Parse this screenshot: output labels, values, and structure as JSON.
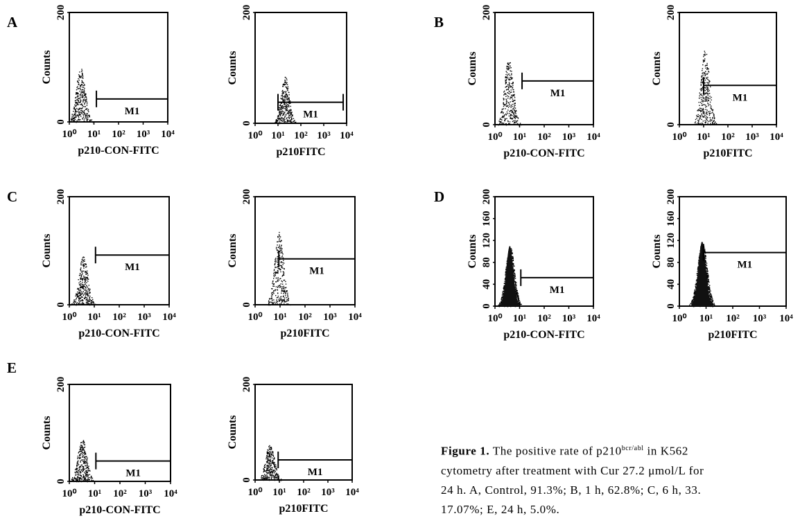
{
  "panels": [
    {
      "letter": "A"
    },
    {
      "letter": "B"
    },
    {
      "letter": "C"
    },
    {
      "letter": "D"
    },
    {
      "letter": "E"
    }
  ],
  "caption": {
    "lead": "Figure 1.",
    "text_1": " The positive rate of p210",
    "sup": "bcr/abl",
    "text_2": " in K562",
    "line2": "cytometry after treatment with Cur 27.2 μmol/L for",
    "line3": "24 h. A, Control, 91.3%;  B, 1 h, 62.8%;  C, 6 h, 33.",
    "line4": "17.07%; E, 24 h, 5.0%."
  },
  "chart_data": [
    {
      "type": "histogram",
      "panel": "A",
      "xlabel": "p210-CON-FITC",
      "ylabel": "Counts",
      "y_ticks": [
        "0",
        "200"
      ],
      "x_ticks": [
        "10⁰",
        "10¹",
        "10²",
        "10³",
        "10⁴"
      ],
      "x_scale": "log",
      "ylim": [
        0,
        200
      ],
      "peak_log": 0.45,
      "peak_height": 100,
      "gate": {
        "label": "M1",
        "from_log": 1.1,
        "to_log": 4.0,
        "y": 42
      }
    },
    {
      "type": "histogram",
      "panel": "A",
      "xlabel": "p210FITC",
      "ylabel": "Counts",
      "y_ticks": [
        "0",
        "200"
      ],
      "x_ticks": [
        "10⁰",
        "10¹",
        "10²",
        "10³",
        "10⁴"
      ],
      "x_scale": "log",
      "ylim": [
        0,
        200
      ],
      "peak_log": 1.3,
      "peak_height": 85,
      "gate": {
        "label": "M1",
        "from_log": 1.0,
        "to_log": 3.85,
        "y": 38
      }
    },
    {
      "type": "histogram",
      "panel": "B",
      "xlabel": "p210-CON-FITC",
      "ylabel": "Counts",
      "y_ticks": [
        "0",
        "200"
      ],
      "x_ticks": [
        "10⁰",
        "10¹",
        "10²",
        "10³",
        "10⁴"
      ],
      "x_scale": "log",
      "ylim": [
        0,
        200
      ],
      "peak_log": 0.55,
      "peak_height": 118,
      "gate": {
        "label": "M1",
        "from_log": 1.1,
        "to_log": 4.0,
        "y": 78
      }
    },
    {
      "type": "histogram",
      "panel": "B",
      "xlabel": "p210FITC",
      "ylabel": "Counts",
      "y_ticks": [
        "0",
        "200"
      ],
      "x_ticks": [
        "10⁰",
        "10¹",
        "10²",
        "10³",
        "10⁴"
      ],
      "x_scale": "log",
      "ylim": [
        0,
        200
      ],
      "peak_log": 1.05,
      "peak_height": 135,
      "gate": {
        "label": "M1",
        "from_log": 1.0,
        "to_log": 4.0,
        "y": 70
      }
    },
    {
      "type": "histogram",
      "panel": "C",
      "xlabel": "p210-CON-FITC",
      "ylabel": "Counts",
      "y_ticks": [
        "0",
        "200"
      ],
      "x_ticks": [
        "10⁰",
        "10¹",
        "10²",
        "10³",
        "10⁴"
      ],
      "x_scale": "log",
      "ylim": [
        0,
        200
      ],
      "peak_log": 0.55,
      "peak_height": 90,
      "gate": {
        "label": "M1",
        "from_log": 1.05,
        "to_log": 4.0,
        "y": 92
      }
    },
    {
      "type": "histogram",
      "panel": "C",
      "xlabel": "p210FITC",
      "ylabel": "Counts",
      "y_ticks": [
        "0",
        "200"
      ],
      "x_ticks": [
        "10⁰",
        "10¹",
        "10²",
        "10³",
        "10⁴"
      ],
      "x_scale": "log",
      "ylim": [
        0,
        200
      ],
      "peak_log": 0.95,
      "peak_height": 135,
      "gate": {
        "label": "M1",
        "from_log": 0.95,
        "to_log": 4.0,
        "y": 85
      }
    },
    {
      "type": "histogram",
      "panel": "D",
      "xlabel": "p210-CON-FITC",
      "ylabel": "Counts",
      "y_ticks": [
        "0",
        "40",
        "80",
        "120",
        "160",
        "200"
      ],
      "x_ticks": [
        "10⁰",
        "10¹",
        "10²",
        "10³",
        "10⁴"
      ],
      "x_scale": "log",
      "ylim": [
        0,
        200
      ],
      "peak_log": 0.6,
      "peak_height": 110,
      "gate": {
        "label": "M1",
        "from_log": 1.05,
        "to_log": 4.0,
        "y": 52
      }
    },
    {
      "type": "histogram",
      "panel": "D",
      "xlabel": "p210FITC",
      "ylabel": "Counts",
      "y_ticks": [
        "0",
        "40",
        "80",
        "120",
        "160",
        "200"
      ],
      "x_ticks": [
        "10⁰",
        "10¹",
        "10²",
        "10³",
        "10⁴"
      ],
      "x_scale": "log",
      "ylim": [
        0,
        200
      ],
      "peak_log": 0.85,
      "peak_height": 118,
      "gate": {
        "label": "M1",
        "from_log": 0.9,
        "to_log": 4.0,
        "y": 98
      }
    },
    {
      "type": "histogram",
      "panel": "E",
      "xlabel": "p210-CON-FITC",
      "ylabel": "Counts",
      "y_ticks": [
        "0",
        "200"
      ],
      "x_ticks": [
        "10⁰",
        "10¹",
        "10²",
        "10³",
        "10⁴"
      ],
      "x_scale": "log",
      "ylim": [
        0,
        200
      ],
      "peak_log": 0.5,
      "peak_height": 88,
      "gate": {
        "label": "M1",
        "from_log": 1.05,
        "to_log": 4.0,
        "y": 42
      }
    },
    {
      "type": "histogram",
      "panel": "E",
      "xlabel": "p210FITC",
      "ylabel": "Counts",
      "y_ticks": [
        "0",
        "200"
      ],
      "x_ticks": [
        "10⁰",
        "10¹",
        "10²",
        "10³",
        "10⁴"
      ],
      "x_scale": "log",
      "ylim": [
        0,
        200
      ],
      "peak_log": 0.6,
      "peak_height": 75,
      "gate": {
        "label": "M1",
        "from_log": 0.95,
        "to_log": 4.0,
        "y": 42
      }
    }
  ]
}
